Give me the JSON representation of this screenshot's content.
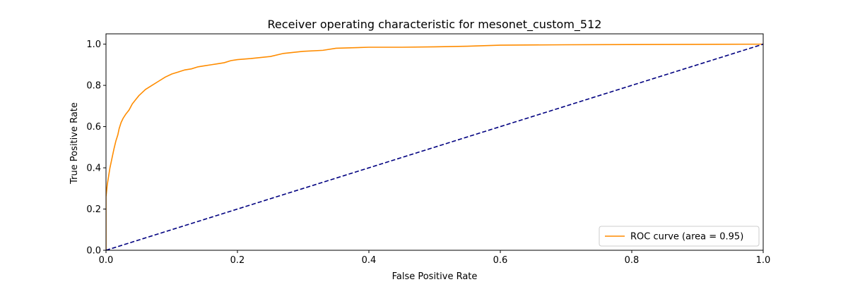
{
  "chart_data": {
    "type": "line",
    "title": "Receiver operating characteristic for mesonet_custom_512",
    "xlabel": "False Positive Rate",
    "ylabel": "True Positive Rate",
    "xlim": [
      0.0,
      1.0
    ],
    "ylim": [
      0.0,
      1.05
    ],
    "x_ticks": [
      0.0,
      0.2,
      0.4,
      0.6,
      0.8,
      1.0
    ],
    "x_tick_labels": [
      "0.0",
      "0.2",
      "0.4",
      "0.6",
      "0.8",
      "1.0"
    ],
    "y_ticks": [
      0.0,
      0.2,
      0.4,
      0.6,
      0.8,
      1.0
    ],
    "y_tick_labels": [
      "0.0",
      "0.2",
      "0.4",
      "0.6",
      "0.8",
      "1.0"
    ],
    "grid": false,
    "legend": {
      "position": "lower-right",
      "entries": [
        "ROC curve (area = 0.95)"
      ]
    },
    "series": [
      {
        "name": "ROC curve (area = 0.95)",
        "color": "#ff8c00",
        "style": "solid",
        "x": [
          0.0,
          0.0,
          0.002,
          0.004,
          0.006,
          0.008,
          0.01,
          0.012,
          0.015,
          0.018,
          0.02,
          0.023,
          0.026,
          0.03,
          0.035,
          0.04,
          0.045,
          0.05,
          0.055,
          0.06,
          0.07,
          0.08,
          0.09,
          0.1,
          0.11,
          0.12,
          0.13,
          0.14,
          0.15,
          0.16,
          0.17,
          0.18,
          0.19,
          0.2,
          0.22,
          0.25,
          0.27,
          0.3,
          0.33,
          0.35,
          0.4,
          0.45,
          0.5,
          0.55,
          0.6,
          0.7,
          0.8,
          0.9,
          1.0
        ],
        "y": [
          0.0,
          0.26,
          0.32,
          0.36,
          0.4,
          0.43,
          0.46,
          0.49,
          0.53,
          0.56,
          0.59,
          0.62,
          0.64,
          0.66,
          0.68,
          0.71,
          0.73,
          0.75,
          0.765,
          0.78,
          0.8,
          0.82,
          0.84,
          0.855,
          0.865,
          0.875,
          0.88,
          0.89,
          0.895,
          0.9,
          0.905,
          0.91,
          0.92,
          0.925,
          0.93,
          0.94,
          0.955,
          0.965,
          0.97,
          0.98,
          0.985,
          0.985,
          0.987,
          0.99,
          0.995,
          0.997,
          0.998,
          0.999,
          1.0
        ]
      },
      {
        "name": "",
        "color": "#000080",
        "style": "dashed",
        "x": [
          0.0,
          1.0
        ],
        "y": [
          0.0,
          1.0
        ]
      }
    ]
  }
}
